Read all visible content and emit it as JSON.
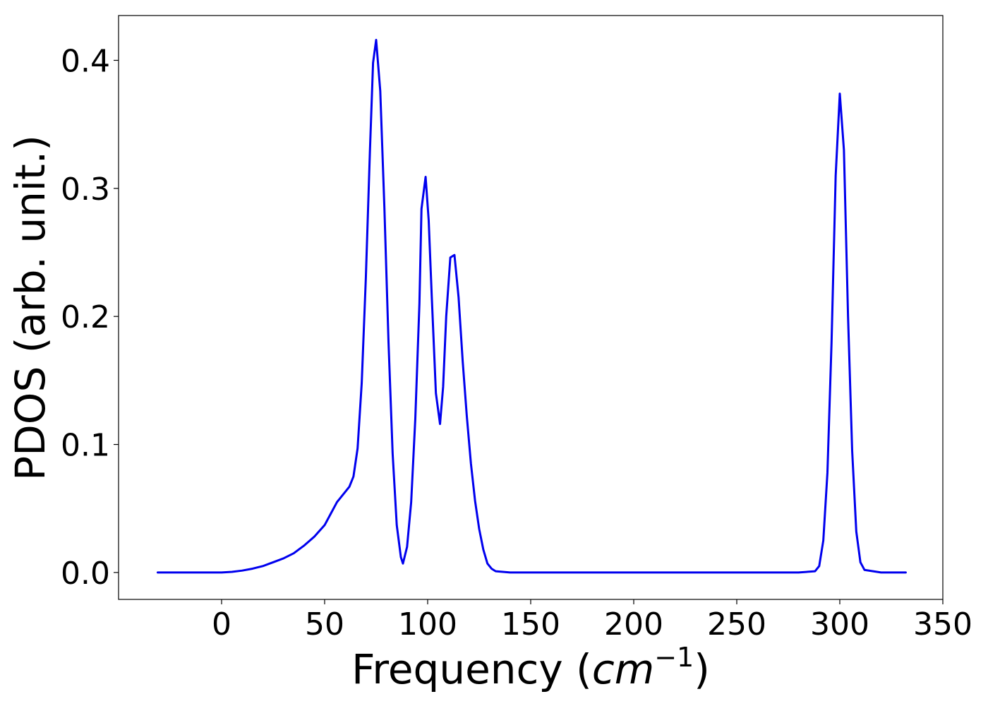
{
  "chart_data": {
    "type": "line",
    "title": "",
    "xlabel": "Frequency (",
    "xlabel_unit": "cm",
    "xlabel_unit_exponent": "−1",
    "xlabel_suffix": ")",
    "ylabel": "PDOS (arb. unit.)",
    "xlim": [
      -50,
      350
    ],
    "ylim": [
      -0.021,
      0.435
    ],
    "xticks": [
      0,
      50,
      100,
      150,
      200,
      250,
      300,
      350
    ],
    "xtick_labels": [
      "0",
      "50",
      "100",
      "150",
      "200",
      "250",
      "300",
      "350"
    ],
    "yticks": [
      0.0,
      0.1,
      0.2,
      0.3,
      0.4
    ],
    "ytick_labels": [
      "0.0",
      "0.1",
      "0.2",
      "0.3",
      "0.4"
    ],
    "grid": false,
    "series": [
      {
        "color": "#0000ee",
        "x": [
          -31,
          -20,
          -10,
          0,
          5,
          10,
          15,
          20,
          25,
          30,
          35,
          40,
          45,
          50,
          53,
          56,
          59,
          62,
          64,
          66,
          68,
          70,
          72,
          73.5,
          75,
          77,
          79,
          81,
          83,
          85,
          87,
          88,
          90,
          92,
          94,
          96,
          97,
          99,
          100.5,
          102,
          104,
          106,
          107.5,
          109,
          111,
          113,
          115,
          117,
          119,
          121,
          123,
          125,
          127,
          129,
          131,
          133,
          140,
          150,
          200,
          250,
          280,
          288,
          290,
          292,
          294,
          296,
          298,
          300,
          302,
          304,
          306,
          308,
          310,
          312,
          320,
          332
        ],
        "y": [
          0.0,
          0.0,
          0.0,
          0.0,
          0.0005,
          0.0015,
          0.003,
          0.005,
          0.008,
          0.011,
          0.015,
          0.021,
          0.028,
          0.037,
          0.046,
          0.055,
          0.061,
          0.067,
          0.075,
          0.097,
          0.148,
          0.23,
          0.33,
          0.398,
          0.416,
          0.376,
          0.285,
          0.18,
          0.093,
          0.037,
          0.012,
          0.007,
          0.02,
          0.055,
          0.12,
          0.21,
          0.284,
          0.309,
          0.275,
          0.215,
          0.14,
          0.116,
          0.145,
          0.2,
          0.246,
          0.248,
          0.215,
          0.165,
          0.122,
          0.085,
          0.056,
          0.034,
          0.018,
          0.007,
          0.003,
          0.001,
          0.0,
          0.0,
          0.0,
          0.0,
          0.0,
          0.001,
          0.005,
          0.025,
          0.078,
          0.18,
          0.31,
          0.374,
          0.33,
          0.2,
          0.095,
          0.032,
          0.008,
          0.002,
          0.0,
          0.0
        ]
      }
    ]
  }
}
